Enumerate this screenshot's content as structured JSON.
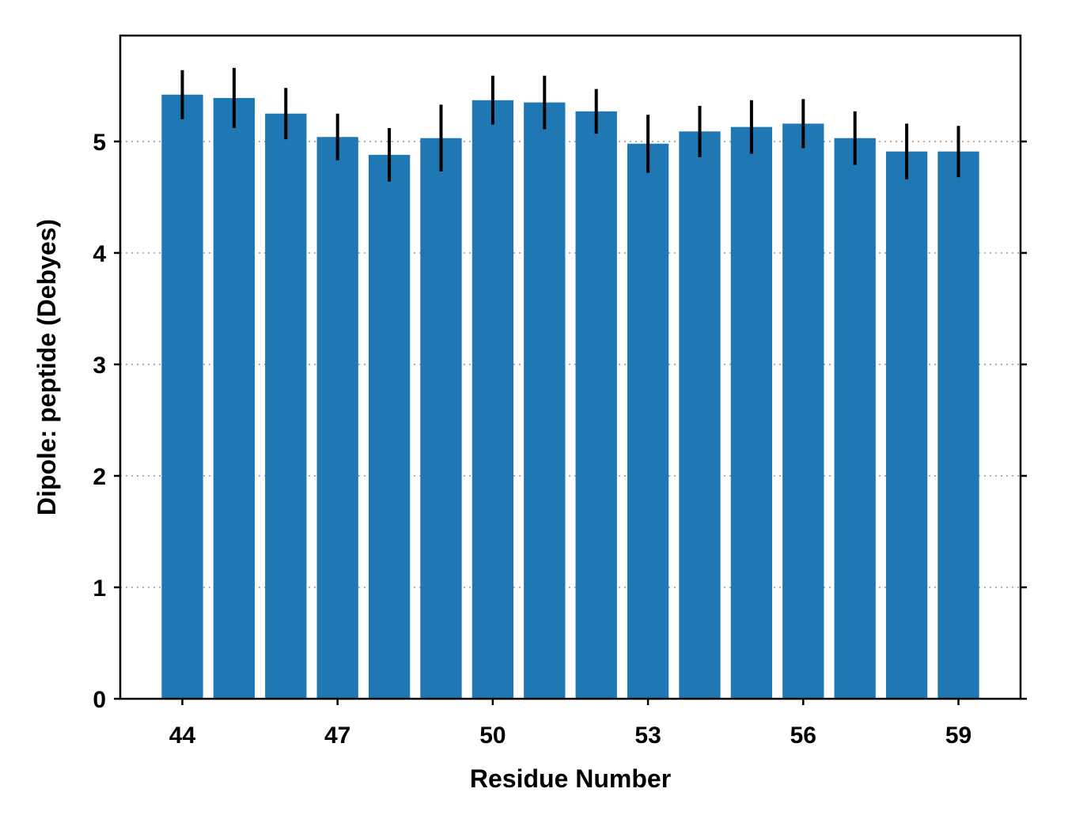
{
  "chart_data": {
    "type": "bar",
    "xlabel": "Residue Number",
    "ylabel": "Dipole: peptide (Debyes)",
    "x": [
      44,
      45,
      46,
      47,
      48,
      49,
      50,
      51,
      52,
      53,
      54,
      55,
      56,
      57,
      58,
      59
    ],
    "values": [
      5.42,
      5.39,
      5.25,
      5.04,
      4.88,
      5.03,
      5.37,
      5.35,
      5.27,
      4.98,
      5.09,
      5.13,
      5.16,
      5.03,
      4.91,
      4.91
    ],
    "errors": [
      0.22,
      0.27,
      0.23,
      0.21,
      0.24,
      0.3,
      0.22,
      0.24,
      0.2,
      0.26,
      0.23,
      0.24,
      0.22,
      0.24,
      0.25,
      0.23
    ],
    "xticks": [
      44,
      47,
      50,
      53,
      56,
      59
    ],
    "yticks": [
      0,
      1,
      2,
      3,
      4,
      5
    ],
    "xlim": [
      42.8,
      60.2
    ],
    "ylim": [
      0,
      5.95
    ],
    "bar_color": "#1f77b4",
    "error_color": "#000000",
    "grid": "y, dotted",
    "legend": "none"
  }
}
